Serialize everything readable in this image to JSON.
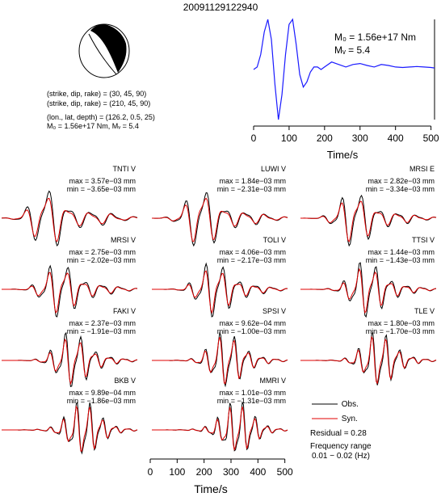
{
  "title": "20091129122940",
  "info": {
    "line1": "(strike, dip, rake) = (30, 45, 90)",
    "line2": "(strike, dip, rake) = (210, 45, 90)",
    "line3": "(lon., lat, depth) = (126.2, 0.5, 25)",
    "line4": "M₀ = 1.56e+17 Nm, Mᵥ = 5.4"
  },
  "stf": {
    "m0": "M₀ = 1.56e+17 Nm",
    "mw": "Mᵥ = 5.4",
    "xlabel": "Time/s",
    "xticks": [
      "0",
      "100",
      "200",
      "300",
      "400",
      "500"
    ]
  },
  "stations": [
    {
      "name": "TNTI V",
      "max": "max = 3.57e−03 mm",
      "min": "min = −3.65e−03 mm"
    },
    {
      "name": "LUWI V",
      "max": "max = 1.84e−03 mm",
      "min": "min = −2.31e−03 mm"
    },
    {
      "name": "MRSI E",
      "max": "max = 2.82e−03 mm",
      "min": "min = −3.34e−03 mm"
    },
    {
      "name": "MRSI V",
      "max": "max = 2.75e−03 mm",
      "min": "min = −2.02e−03 mm"
    },
    {
      "name": "TOLI V",
      "max": "max = 4.06e−03 mm",
      "min": "min = −2.17e−03 mm"
    },
    {
      "name": "TTSI V",
      "max": "max = 1.44e−03 mm",
      "min": "min = −1.43e−03 mm"
    },
    {
      "name": "FAKI V",
      "max": "max = 2.37e−03 mm",
      "min": "min = −1.91e−03 mm"
    },
    {
      "name": "SPSI V",
      "max": "max = 9.62e−04 mm",
      "min": "min = −1.00e−03 mm"
    },
    {
      "name": "TLE V",
      "max": "max = 1.80e−03 mm",
      "min": "min = −1.70e−03 mm"
    },
    {
      "name": "BKB V",
      "max": "max = 9.89e−04 mm",
      "min": "min = −1.86e−03 mm"
    },
    {
      "name": "MMRI V",
      "max": "max = 1.01e−03 mm",
      "min": "min = −1.31e−03 mm"
    }
  ],
  "legend": {
    "obs": "Obs.",
    "syn": "Syn.",
    "residual": "Residual = 0.28",
    "freq1": "Frequency range",
    "freq2": "0.01 − 0.02 (Hz)",
    "obs_color": "#000000",
    "syn_color": "#e00000"
  },
  "bottom_axis": {
    "xlabel": "Time/s",
    "xticks": [
      "0",
      "100",
      "200",
      "300",
      "400",
      "500"
    ]
  },
  "chart_data": [
    {
      "type": "line",
      "title": "",
      "xlabel": "Time/s",
      "ylabel": "",
      "xlim": [
        0,
        510
      ],
      "series": [
        {
          "values_x": [
            0,
            10,
            20,
            30,
            40,
            50,
            60,
            70,
            80,
            90,
            100,
            110,
            120,
            130,
            140,
            150,
            160,
            170,
            180,
            190,
            200,
            220,
            240,
            260,
            280,
            300,
            320,
            340,
            360,
            380,
            400,
            420,
            440,
            460,
            480,
            500,
            510
          ],
          "values_y": [
            0.0,
            0.05,
            0.3,
            0.75,
            1.0,
            0.6,
            -0.3,
            -1.0,
            -0.5,
            0.3,
            0.9,
            1.0,
            0.5,
            -0.1,
            -0.35,
            -0.25,
            -0.05,
            0.05,
            0.05,
            0.0,
            0.05,
            0.15,
            0.1,
            0.05,
            0.1,
            0.12,
            0.08,
            0.05,
            0.1,
            0.08,
            0.05,
            0.04,
            0.05,
            0.06,
            0.05,
            0.04,
            0.03
          ]
        }
      ]
    },
    {
      "type": "line",
      "title": "",
      "xlabel": "Time/s",
      "ylabel": "",
      "xlim": [
        0,
        510
      ],
      "note_series": "Observed and synthetic waveforms per station",
      "series": [
        {
          "name": "Obs."
        },
        {
          "name": "Syn."
        }
      ]
    }
  ]
}
